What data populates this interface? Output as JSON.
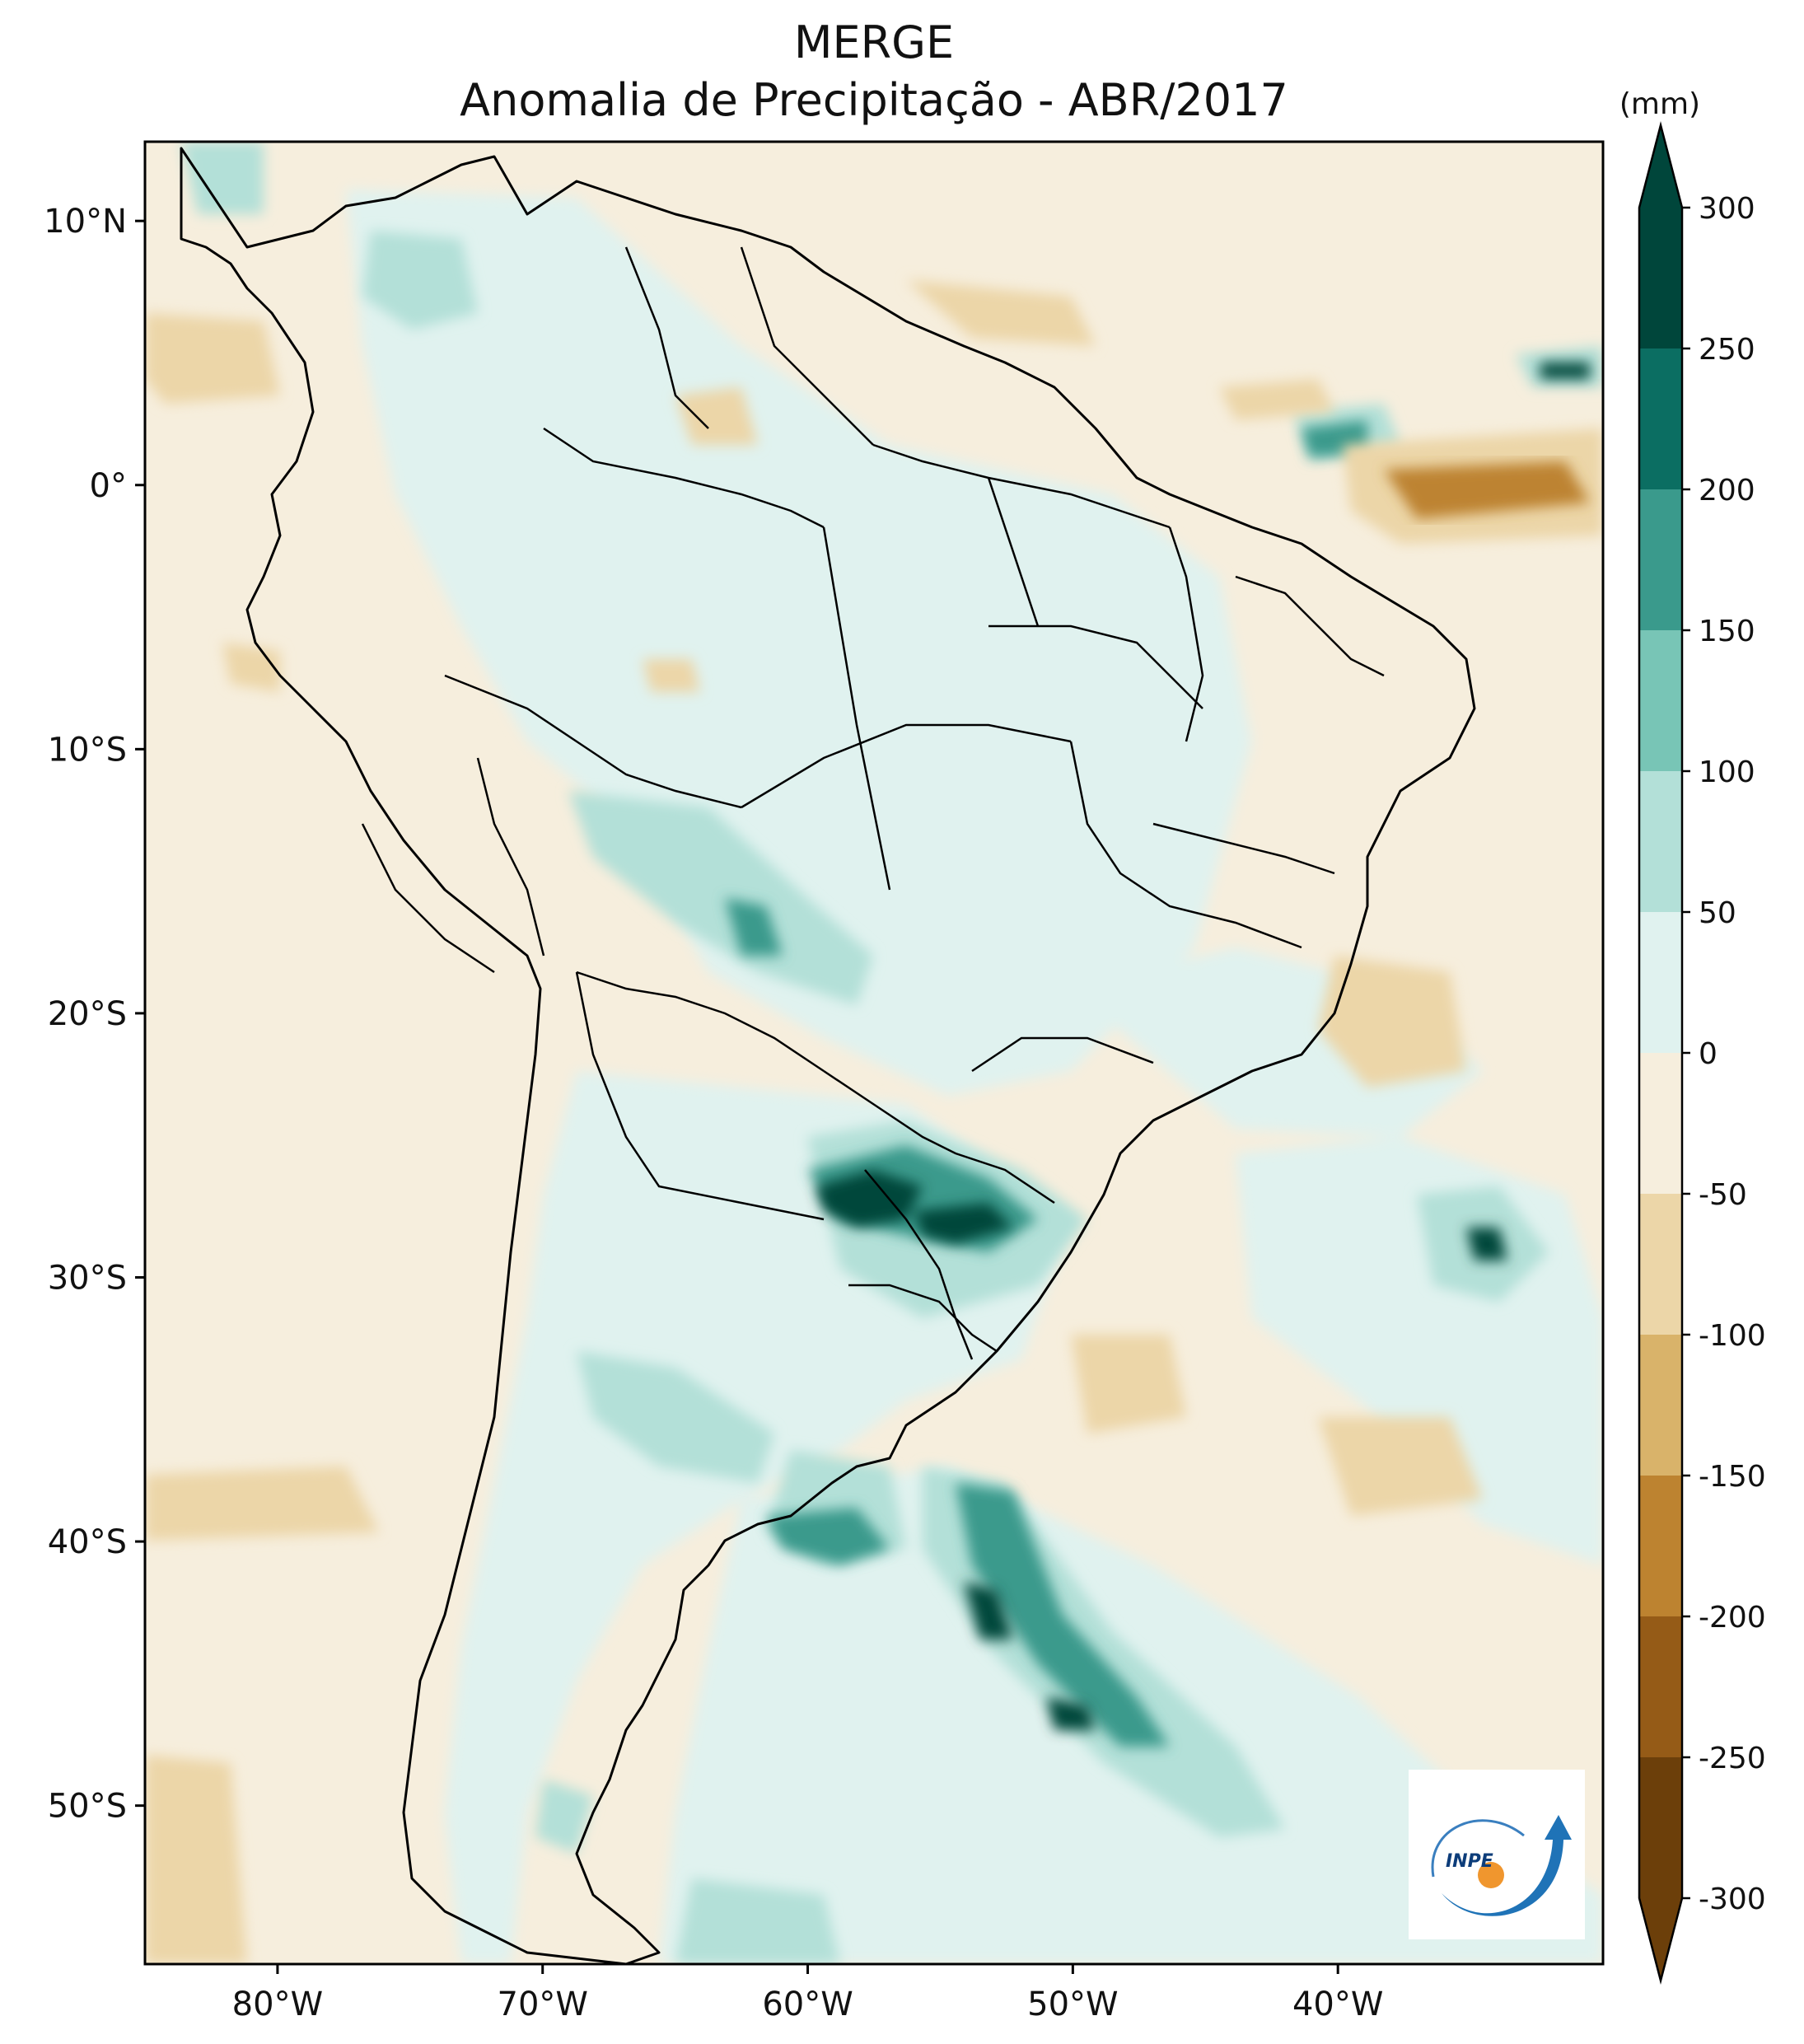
{
  "title": "MERGE",
  "subtitle": "Anomalia de Precipitação - ABR/2017",
  "colorbar": {
    "unit": "(mm)",
    "ticks": [
      "300",
      "250",
      "200",
      "150",
      "100",
      "50",
      "0",
      "-50",
      "-100",
      "-150",
      "-200",
      "-250",
      "-300"
    ],
    "levels": [
      300,
      250,
      200,
      150,
      100,
      50,
      0,
      -50,
      -100,
      -150,
      -200,
      -250,
      -300
    ],
    "colors": [
      "#00463b",
      "#0b6e62",
      "#3a9a8c",
      "#78c5b6",
      "#b3e0d8",
      "#e0f2ef",
      "#f6eedd",
      "#ecd6a8",
      "#d9b36a",
      "#bd8330",
      "#955b17",
      "#6c3f0a"
    ],
    "extend": "both"
  },
  "axes": {
    "lon_ticks": [
      "80°W",
      "70°W",
      "60°W",
      "50°W",
      "40°W"
    ],
    "lat_ticks": [
      "10°N",
      "0°",
      "10°S",
      "20°S",
      "30°S",
      "40°S",
      "50°S"
    ],
    "lon_values": [
      -80,
      -70,
      -60,
      -50,
      -40
    ],
    "lat_values": [
      10,
      0,
      -10,
      -20,
      -30,
      -40,
      -50
    ],
    "lon_range": [
      -85,
      -30
    ],
    "lat_range": [
      -56,
      13
    ]
  },
  "logo": {
    "text": "INPE",
    "name": "inpe-logo"
  }
}
